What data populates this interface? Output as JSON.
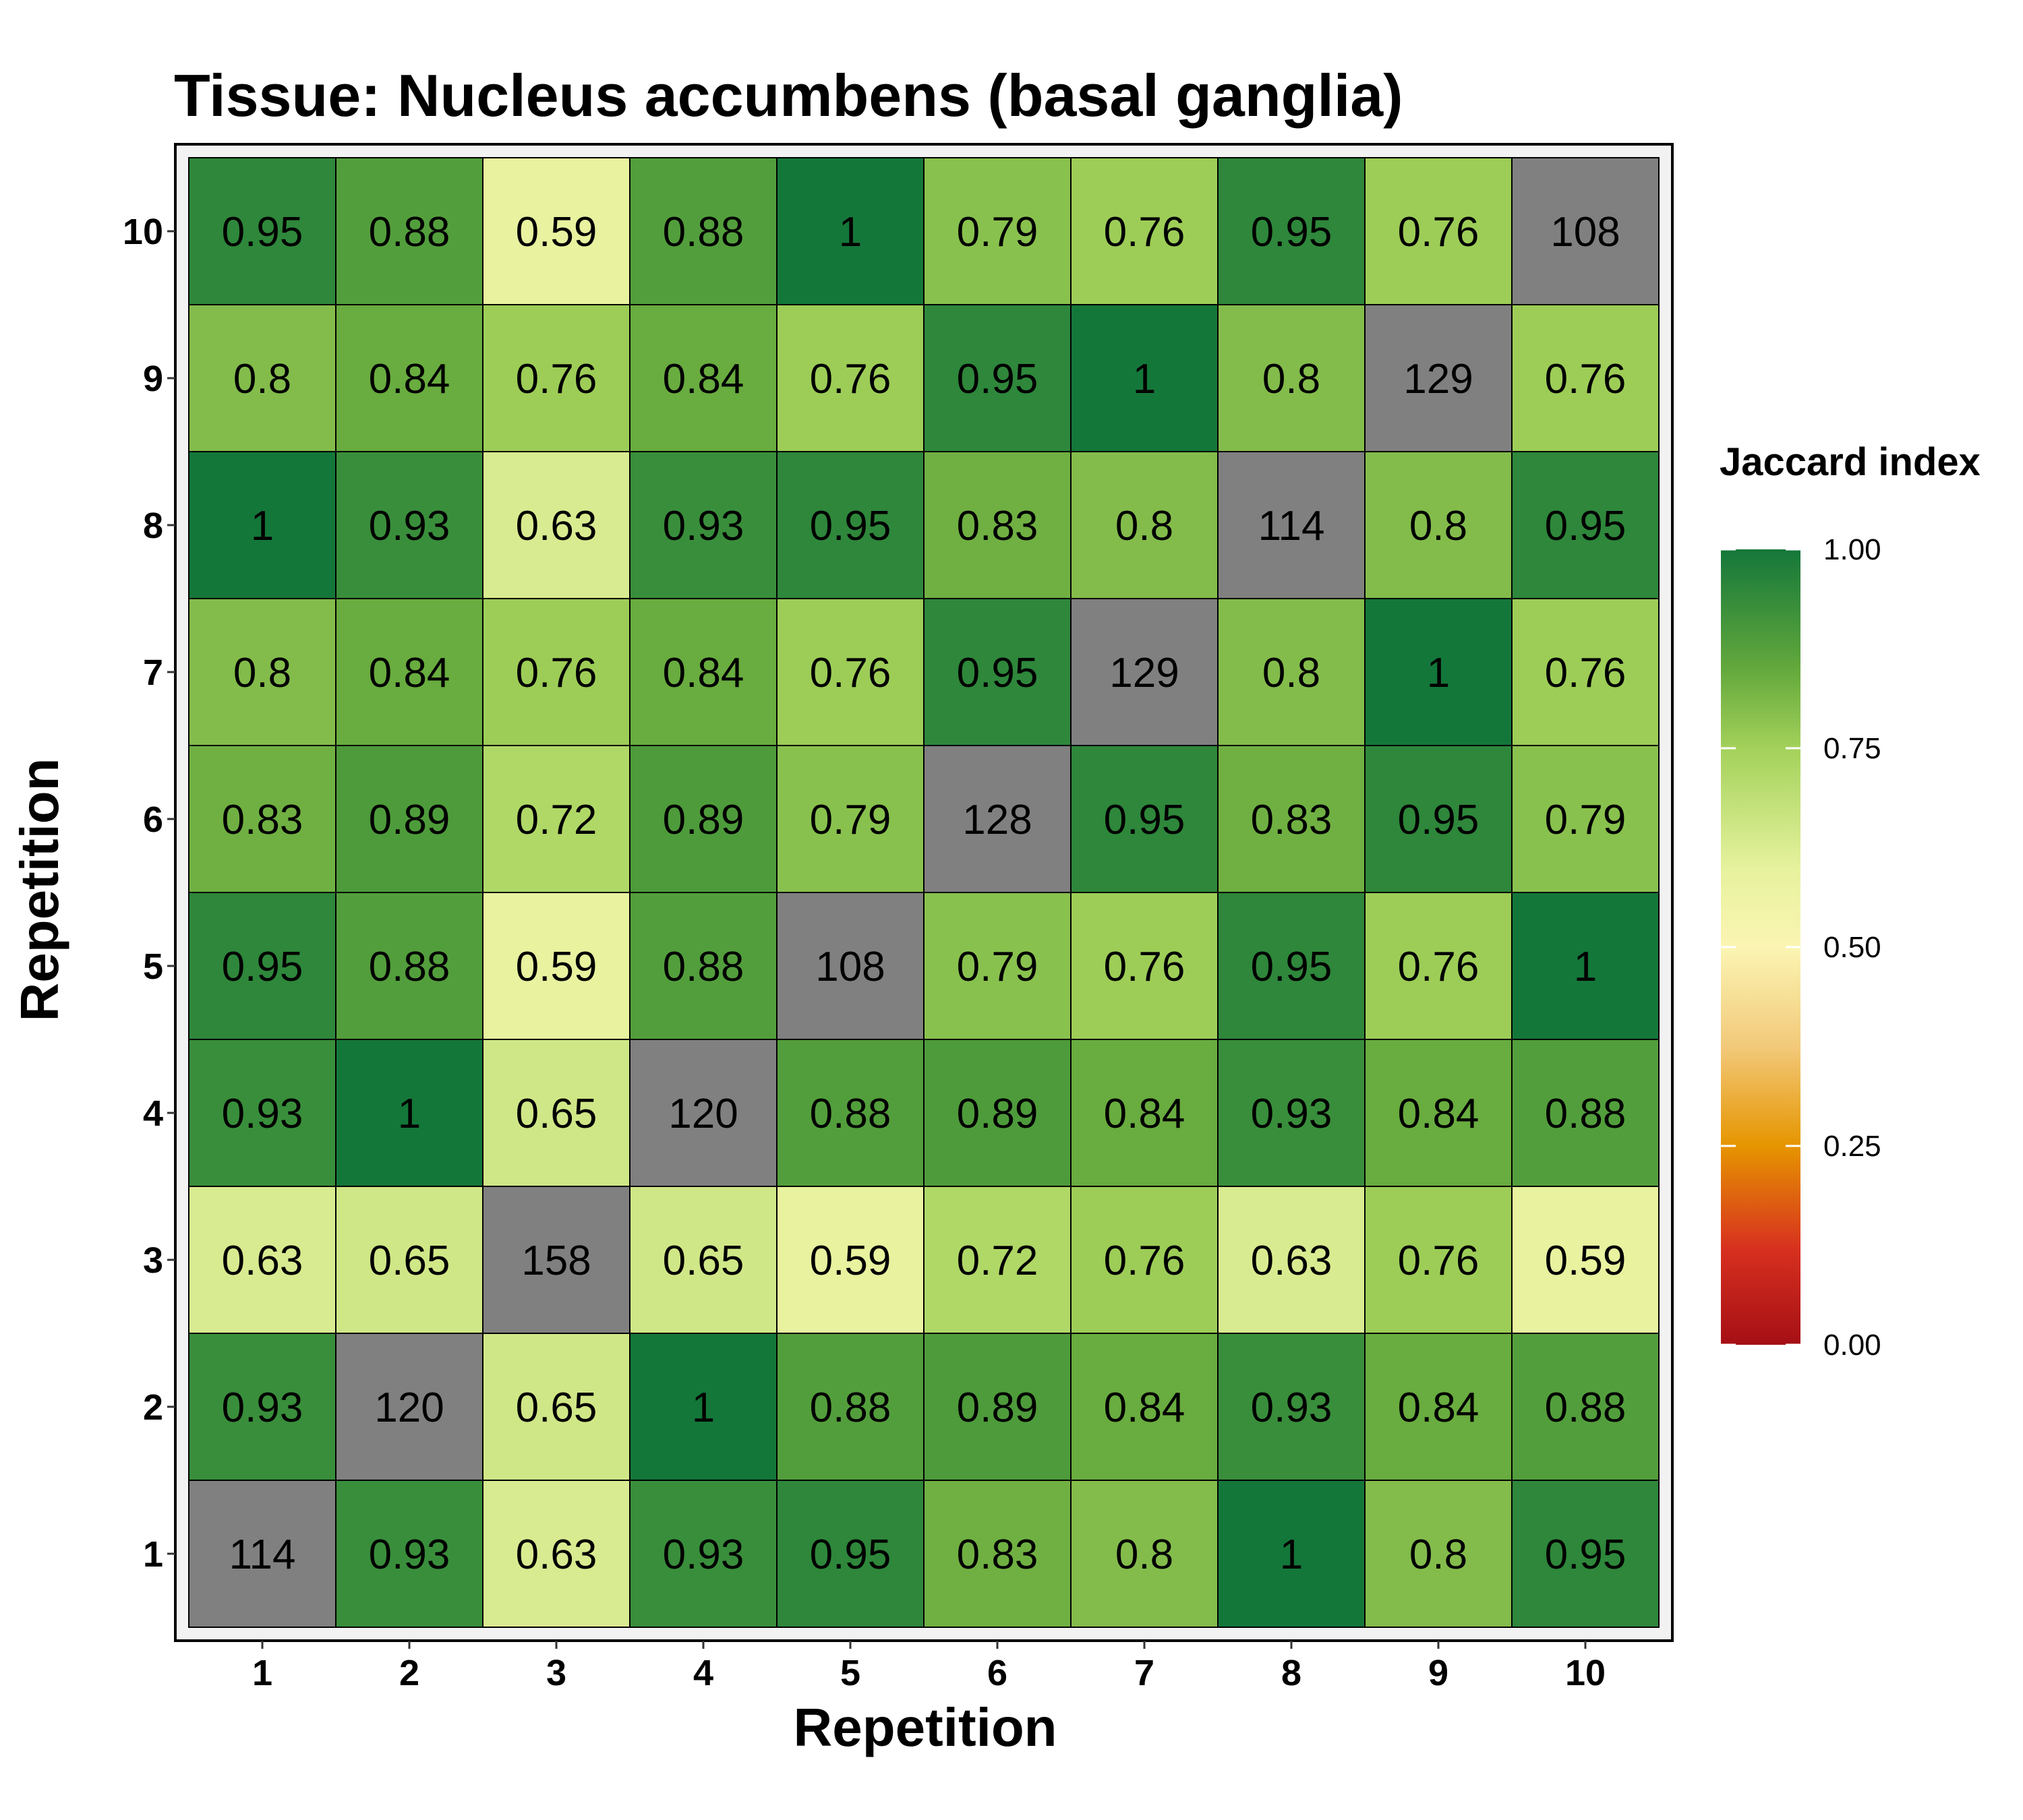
{
  "chart_data": {
    "type": "heatmap",
    "title": "Tissue: Nucleus accumbens (basal ganglia)",
    "xlabel": "Repetition",
    "ylabel": "Repetition",
    "x_categories": [
      "1",
      "2",
      "3",
      "4",
      "5",
      "6",
      "7",
      "8",
      "9",
      "10"
    ],
    "y_categories": [
      "1",
      "2",
      "3",
      "4",
      "5",
      "6",
      "7",
      "8",
      "9",
      "10"
    ],
    "diagonal_color": "#808080",
    "rows": [
      {
        "y": "10",
        "labels": [
          "0.95",
          "0.88",
          "0.59",
          "0.88",
          "1",
          "0.79",
          "0.76",
          "0.95",
          "0.76",
          "108"
        ],
        "values": [
          0.95,
          0.88,
          0.59,
          0.88,
          1,
          0.79,
          0.76,
          0.95,
          0.76,
          null
        ]
      },
      {
        "y": "9",
        "labels": [
          "0.8",
          "0.84",
          "0.76",
          "0.84",
          "0.76",
          "0.95",
          "1",
          "0.8",
          "129",
          "0.76"
        ],
        "values": [
          0.8,
          0.84,
          0.76,
          0.84,
          0.76,
          0.95,
          1,
          0.8,
          null,
          0.76
        ]
      },
      {
        "y": "8",
        "labels": [
          "1",
          "0.93",
          "0.63",
          "0.93",
          "0.95",
          "0.83",
          "0.8",
          "114",
          "0.8",
          "0.95"
        ],
        "values": [
          1,
          0.93,
          0.63,
          0.93,
          0.95,
          0.83,
          0.8,
          null,
          0.8,
          0.95
        ]
      },
      {
        "y": "7",
        "labels": [
          "0.8",
          "0.84",
          "0.76",
          "0.84",
          "0.76",
          "0.95",
          "129",
          "0.8",
          "1",
          "0.76"
        ],
        "values": [
          0.8,
          0.84,
          0.76,
          0.84,
          0.76,
          0.95,
          null,
          0.8,
          1,
          0.76
        ]
      },
      {
        "y": "6",
        "labels": [
          "0.83",
          "0.89",
          "0.72",
          "0.89",
          "0.79",
          "128",
          "0.95",
          "0.83",
          "0.95",
          "0.79"
        ],
        "values": [
          0.83,
          0.89,
          0.72,
          0.89,
          0.79,
          null,
          0.95,
          0.83,
          0.95,
          0.79
        ]
      },
      {
        "y": "5",
        "labels": [
          "0.95",
          "0.88",
          "0.59",
          "0.88",
          "108",
          "0.79",
          "0.76",
          "0.95",
          "0.76",
          "1"
        ],
        "values": [
          0.95,
          0.88,
          0.59,
          0.88,
          null,
          0.79,
          0.76,
          0.95,
          0.76,
          1
        ]
      },
      {
        "y": "4",
        "labels": [
          "0.93",
          "1",
          "0.65",
          "120",
          "0.88",
          "0.89",
          "0.84",
          "0.93",
          "0.84",
          "0.88"
        ],
        "values": [
          0.93,
          1,
          0.65,
          null,
          0.88,
          0.89,
          0.84,
          0.93,
          0.84,
          0.88
        ]
      },
      {
        "y": "3",
        "labels": [
          "0.63",
          "0.65",
          "158",
          "0.65",
          "0.59",
          "0.72",
          "0.76",
          "0.63",
          "0.76",
          "0.59"
        ],
        "values": [
          0.63,
          0.65,
          null,
          0.65,
          0.59,
          0.72,
          0.76,
          0.63,
          0.76,
          0.59
        ]
      },
      {
        "y": "2",
        "labels": [
          "0.93",
          "120",
          "0.65",
          "1",
          "0.88",
          "0.89",
          "0.84",
          "0.93",
          "0.84",
          "0.88"
        ],
        "values": [
          0.93,
          null,
          0.65,
          1,
          0.88,
          0.89,
          0.84,
          0.93,
          0.84,
          0.88
        ]
      },
      {
        "y": "1",
        "labels": [
          "114",
          "0.93",
          "0.63",
          "0.93",
          "0.95",
          "0.83",
          "0.8",
          "1",
          "0.8",
          "0.95"
        ],
        "values": [
          null,
          0.93,
          0.63,
          0.93,
          0.95,
          0.83,
          0.8,
          1,
          0.8,
          0.95
        ]
      }
    ],
    "legend": {
      "title": "Jaccard index",
      "range": [
        0,
        1
      ],
      "ticks": [
        "0.00",
        "0.25",
        "0.50",
        "0.75",
        "1.00"
      ],
      "tick_values": [
        0,
        0.25,
        0.5,
        0.75,
        1
      ],
      "color_stops": [
        {
          "value": 0.0,
          "color": "#a50f15"
        },
        {
          "value": 0.12,
          "color": "#d7301f"
        },
        {
          "value": 0.25,
          "color": "#e69500"
        },
        {
          "value": 0.375,
          "color": "#f2c97a"
        },
        {
          "value": 0.5,
          "color": "#fbf5b3"
        },
        {
          "value": 0.6,
          "color": "#e6f29d"
        },
        {
          "value": 0.75,
          "color": "#a3d15a"
        },
        {
          "value": 0.85,
          "color": "#63a83c"
        },
        {
          "value": 1.0,
          "color": "#14773a"
        }
      ]
    }
  }
}
